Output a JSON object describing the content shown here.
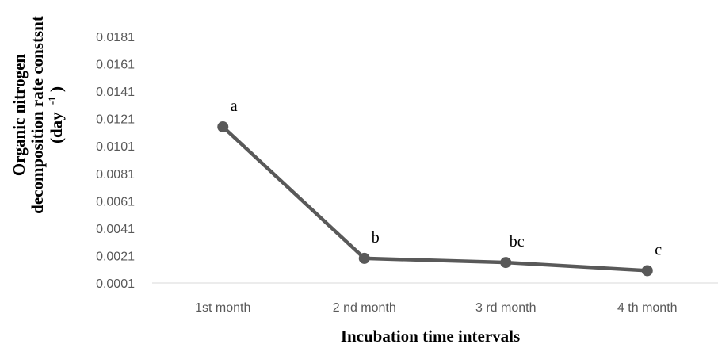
{
  "chart_data": {
    "type": "line",
    "categories": [
      "1st month",
      "2 nd month",
      "3 rd month",
      "4 th month"
    ],
    "series": [
      {
        "values": [
          0.0115,
          0.0019,
          0.0016,
          0.001
        ],
        "data_labels": [
          "a",
          "b",
          "bc",
          "c"
        ],
        "color": "#595959"
      }
    ],
    "yticks": [
      "0.0001",
      "0.0021",
      "0.0041",
      "0.0061",
      "0.0081",
      "0.0101",
      "0.0121",
      "0.0141",
      "0.0161",
      "0.0181"
    ],
    "ylim": [
      0.0001,
      0.0181
    ],
    "xlabel": "Incubation time intervals",
    "ylabel_lines": [
      "Organic nitrogen",
      "decomposition rate constsnt"
    ],
    "ylabel_unit": {
      "base": "(day",
      "sup": "-1",
      "close": ")"
    },
    "grid": false,
    "axis_color": "#d9d9d9"
  }
}
